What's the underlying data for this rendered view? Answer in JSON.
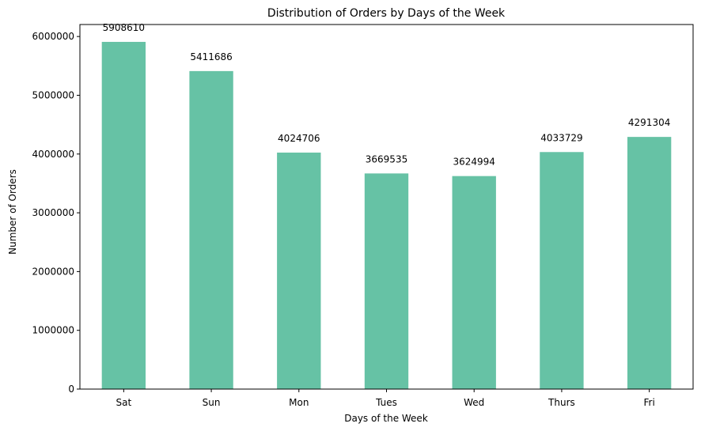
{
  "chart_data": {
    "type": "bar",
    "title": "Distribution of Orders by Days of the Week",
    "xlabel": "Days of the Week",
    "ylabel": "Number of Orders",
    "categories": [
      "Sat",
      "Sun",
      "Mon",
      "Tues",
      "Wed",
      "Thurs",
      "Fri"
    ],
    "values": [
      5908610,
      5411686,
      4024706,
      3669535,
      3624994,
      4033729,
      4291304
    ],
    "data_labels": [
      "5908610",
      "5411686",
      "4024706",
      "3669535",
      "3624994",
      "4033729",
      "4291304"
    ],
    "yticks": [
      0,
      1000000,
      2000000,
      3000000,
      4000000,
      5000000,
      6000000
    ],
    "ytick_labels": [
      "0",
      "1000000",
      "2000000",
      "3000000",
      "4000000",
      "5000000",
      "6000000"
    ],
    "ylim": [
      0,
      6204040
    ],
    "bar_color": "#66c2a5",
    "grid": false,
    "legend": "none"
  }
}
